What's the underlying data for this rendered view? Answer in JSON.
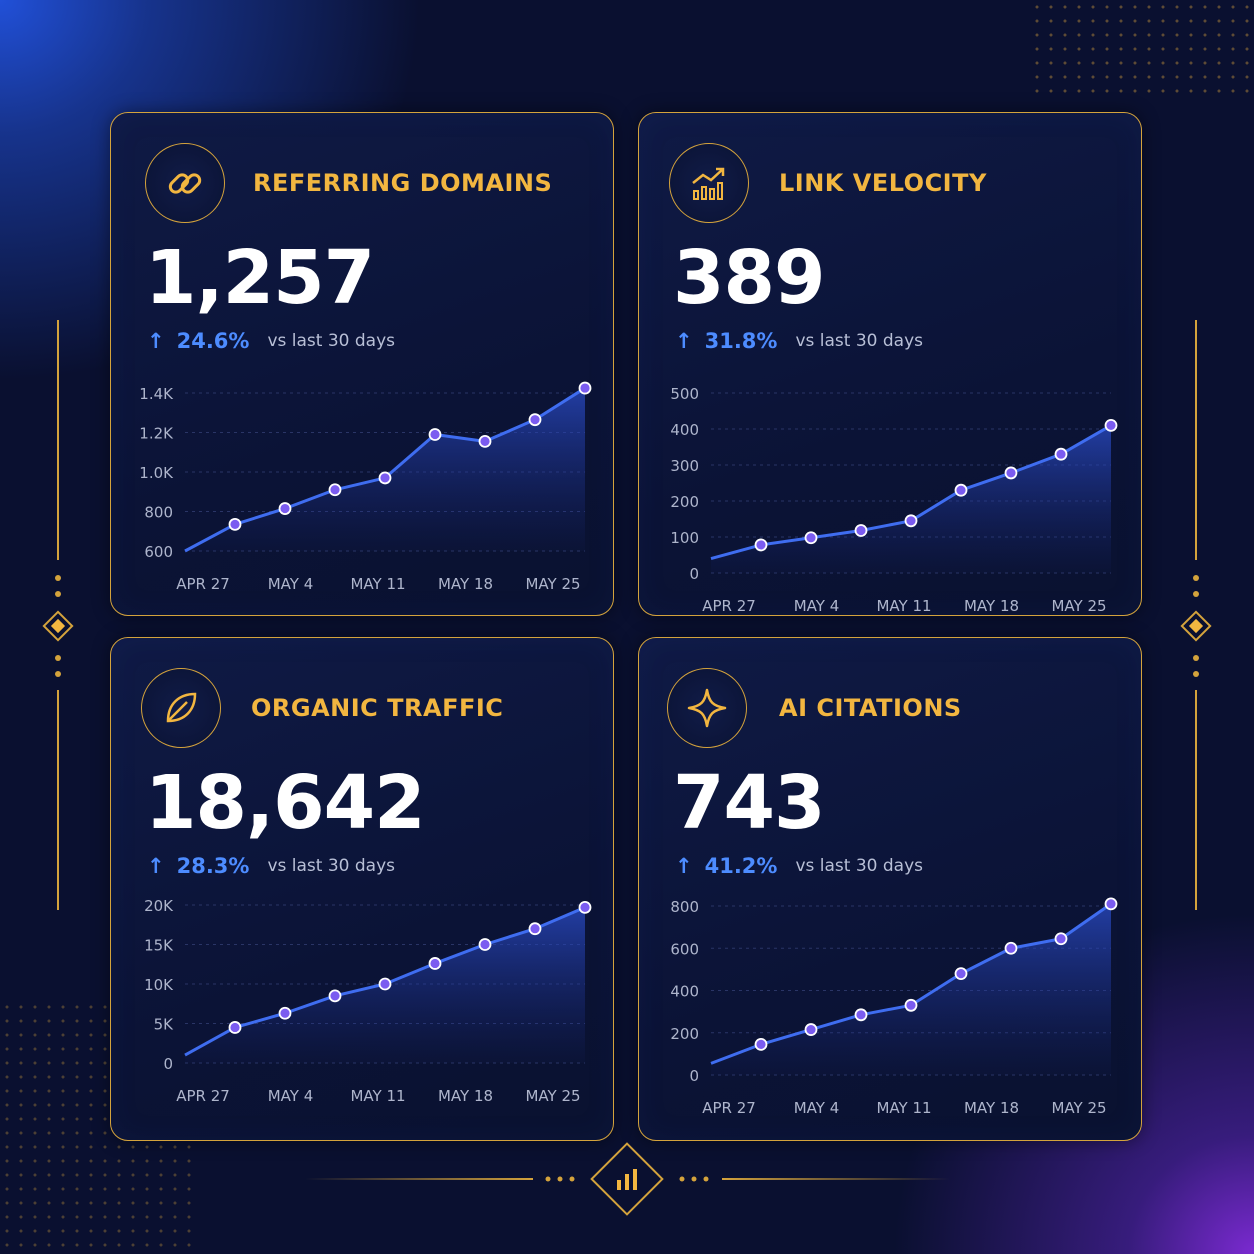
{
  "colors": {
    "gold": "#d4a33c",
    "title": "#f2b640",
    "accent": "#4d8cff",
    "line": "#3f6df0",
    "point": "#7b5cf0"
  },
  "cards": [
    {
      "title": "REFERRING DOMAINS",
      "icon": "link-icon",
      "value": "1,257",
      "delta": {
        "arrow": "↑",
        "pct": "24.6%",
        "cmp": "vs last 30 days"
      }
    },
    {
      "title": "LINK VELOCITY",
      "icon": "trending-up-icon",
      "value": "389",
      "delta": {
        "arrow": "↑",
        "pct": "31.8%",
        "cmp": "vs last 30 days"
      }
    },
    {
      "title": "ORGANIC TRAFFIC",
      "icon": "leaf-icon",
      "value": "18,642",
      "delta": {
        "arrow": "↑",
        "pct": "28.3%",
        "cmp": "vs last 30 days"
      }
    },
    {
      "title": "AI CITATIONS",
      "icon": "sparkle-icon",
      "value": "743",
      "delta": {
        "arrow": "↑",
        "pct": "41.2%",
        "cmp": "vs last 30 days"
      }
    }
  ],
  "footer_icon": "bar-chart-icon",
  "chart_data": [
    {
      "type": "area",
      "title": "REFERRING DOMAINS",
      "x_ticks": [
        "APR 27",
        "MAY 4",
        "MAY 11",
        "MAY 18",
        "MAY 25"
      ],
      "y_ticks": [
        "600",
        "800",
        "1.0K",
        "1.2K",
        "1.4K"
      ],
      "ylim": [
        600,
        1400
      ],
      "grid": true,
      "points": [
        {
          "x": 0,
          "y": 600,
          "marker": false
        },
        {
          "x": 1,
          "y": 735,
          "marker": true
        },
        {
          "x": 2,
          "y": 815,
          "marker": true
        },
        {
          "x": 3,
          "y": 910,
          "marker": true
        },
        {
          "x": 4,
          "y": 970,
          "marker": true
        },
        {
          "x": 5,
          "y": 1190,
          "marker": true
        },
        {
          "x": 6,
          "y": 1155,
          "marker": true
        },
        {
          "x": 7,
          "y": 1265,
          "marker": true
        },
        {
          "x": 8,
          "y": 1425,
          "marker": true
        }
      ]
    },
    {
      "type": "area",
      "title": "LINK VELOCITY",
      "x_ticks": [
        "APR 27",
        "MAY 4",
        "MAY 11",
        "MAY 18",
        "MAY 25"
      ],
      "y_ticks": [
        "0",
        "100",
        "200",
        "300",
        "400",
        "500"
      ],
      "ylim": [
        0,
        500
      ],
      "grid": true,
      "points": [
        {
          "x": 0,
          "y": 40,
          "marker": false
        },
        {
          "x": 1,
          "y": 78,
          "marker": true
        },
        {
          "x": 2,
          "y": 98,
          "marker": true
        },
        {
          "x": 3,
          "y": 118,
          "marker": true
        },
        {
          "x": 4,
          "y": 145,
          "marker": true
        },
        {
          "x": 5,
          "y": 230,
          "marker": true
        },
        {
          "x": 6,
          "y": 278,
          "marker": true
        },
        {
          "x": 7,
          "y": 330,
          "marker": true
        },
        {
          "x": 8,
          "y": 410,
          "marker": true
        }
      ]
    },
    {
      "type": "area",
      "title": "ORGANIC TRAFFIC",
      "x_ticks": [
        "APR 27",
        "MAY 4",
        "MAY 11",
        "MAY 18",
        "MAY 25"
      ],
      "y_ticks": [
        "0",
        "5K",
        "10K",
        "15K",
        "20K"
      ],
      "ylim": [
        0,
        20000
      ],
      "grid": true,
      "points": [
        {
          "x": 0,
          "y": 1000,
          "marker": false
        },
        {
          "x": 1,
          "y": 4500,
          "marker": true
        },
        {
          "x": 2,
          "y": 6300,
          "marker": true
        },
        {
          "x": 3,
          "y": 8500,
          "marker": true
        },
        {
          "x": 4,
          "y": 10000,
          "marker": true
        },
        {
          "x": 5,
          "y": 12600,
          "marker": true
        },
        {
          "x": 6,
          "y": 15000,
          "marker": true
        },
        {
          "x": 7,
          "y": 17000,
          "marker": true
        },
        {
          "x": 8,
          "y": 19700,
          "marker": true
        }
      ]
    },
    {
      "type": "area",
      "title": "AI CITATIONS",
      "x_ticks": [
        "APR 27",
        "MAY 4",
        "MAY 11",
        "MAY 18",
        "MAY 25"
      ],
      "y_ticks": [
        "0",
        "200",
        "400",
        "600",
        "800"
      ],
      "ylim": [
        0,
        800
      ],
      "grid": true,
      "points": [
        {
          "x": 0,
          "y": 55,
          "marker": false
        },
        {
          "x": 1,
          "y": 145,
          "marker": true
        },
        {
          "x": 2,
          "y": 215,
          "marker": true
        },
        {
          "x": 3,
          "y": 285,
          "marker": true
        },
        {
          "x": 4,
          "y": 330,
          "marker": true
        },
        {
          "x": 5,
          "y": 480,
          "marker": true
        },
        {
          "x": 6,
          "y": 600,
          "marker": true
        },
        {
          "x": 7,
          "y": 645,
          "marker": true
        },
        {
          "x": 8,
          "y": 810,
          "marker": true
        }
      ]
    }
  ]
}
